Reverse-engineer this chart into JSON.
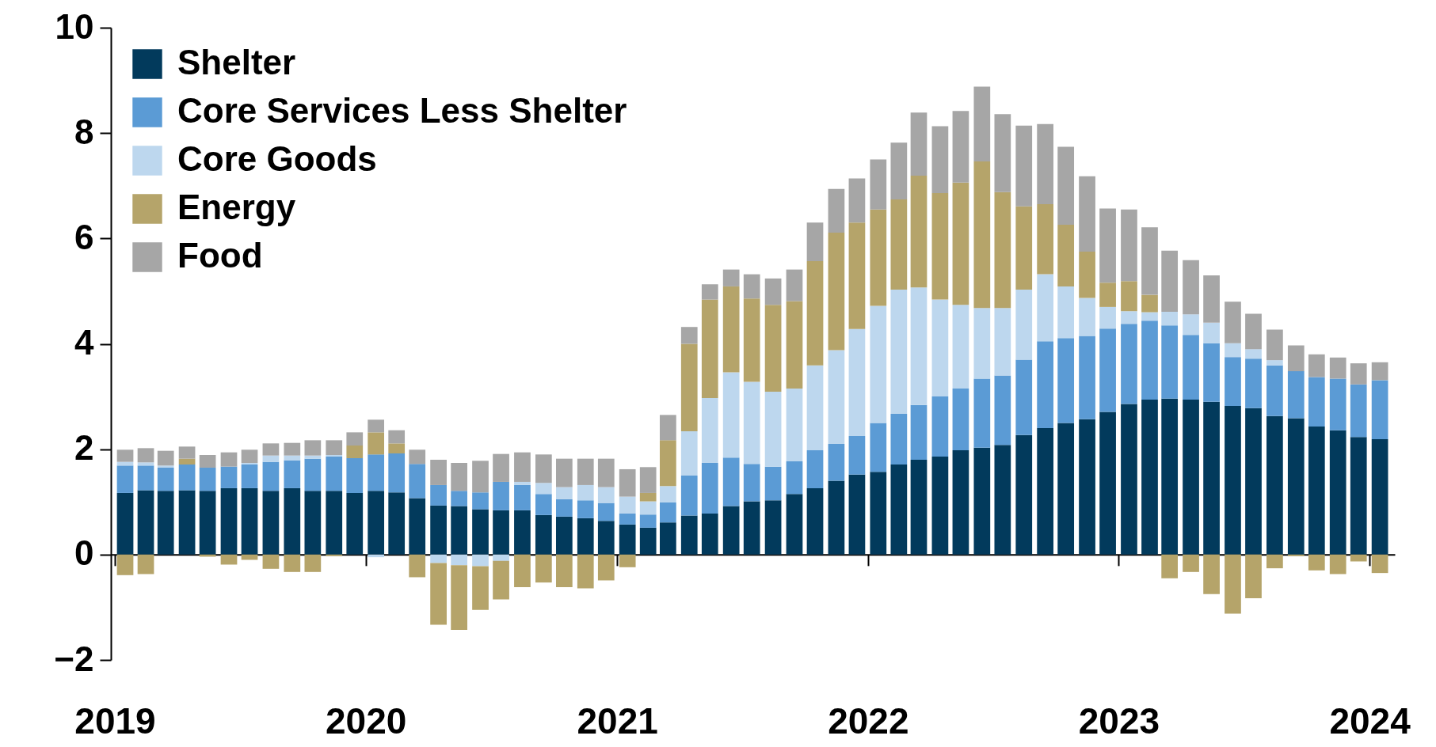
{
  "chart_data": {
    "type": "bar",
    "stacked": true,
    "legend": "top left",
    "x": [
      "2019-01-16",
      "2019-02-15",
      "2019-03-16",
      "2019-04-16",
      "2019-05-16",
      "2019-06-16",
      "2019-07-16",
      "2019-08-16",
      "2019-09-16",
      "2019-10-16",
      "2019-11-16",
      "2019-12-16",
      "2020-01-16",
      "2020-02-15",
      "2020-03-16",
      "2020-04-16",
      "2020-05-16",
      "2020-06-16",
      "2020-07-16",
      "2020-08-16",
      "2020-09-16",
      "2020-10-16",
      "2020-11-16",
      "2020-12-16",
      "2021-01-16",
      "2021-02-15",
      "2021-03-16",
      "2021-04-16",
      "2021-05-16",
      "2021-06-16",
      "2021-07-16",
      "2021-08-16",
      "2021-09-16",
      "2021-10-16",
      "2021-11-16",
      "2021-12-16",
      "2022-01-16",
      "2022-02-15",
      "2022-03-16",
      "2022-04-16",
      "2022-05-16",
      "2022-06-16",
      "2022-07-16",
      "2022-08-16",
      "2022-09-16",
      "2022-10-16",
      "2022-11-16",
      "2022-12-16",
      "2023-01-16",
      "2023-02-15",
      "2023-03-16",
      "2023-04-16",
      "2023-05-16",
      "2023-06-16",
      "2023-07-16",
      "2023-08-16",
      "2023-09-16",
      "2023-10-16",
      "2023-11-16",
      "2023-12-16",
      "2024-01-16"
    ],
    "xlim": [
      "2019-01",
      "2024-02"
    ],
    "xticks": [
      "2019",
      "2020",
      "2021",
      "2022",
      "2023",
      "2024"
    ],
    "ylim": [
      -2,
      10
    ],
    "yticks": [
      -2,
      0,
      2,
      4,
      6,
      8,
      10
    ],
    "series": [
      {
        "name": "Shelter",
        "color": "#023a5c",
        "values": [
          1.17,
          1.22,
          1.21,
          1.22,
          1.21,
          1.26,
          1.26,
          1.21,
          1.26,
          1.21,
          1.21,
          1.17,
          1.21,
          1.18,
          1.07,
          0.93,
          0.92,
          0.86,
          0.84,
          0.84,
          0.75,
          0.72,
          0.69,
          0.64,
          0.57,
          0.51,
          0.61,
          0.74,
          0.78,
          0.92,
          1.01,
          1.03,
          1.15,
          1.26,
          1.4,
          1.52,
          1.57,
          1.71,
          1.8,
          1.86,
          1.98,
          2.03,
          2.08,
          2.27,
          2.4,
          2.5,
          2.57,
          2.71,
          2.86,
          2.94,
          2.96,
          2.94,
          2.9,
          2.82,
          2.78,
          2.63,
          2.59,
          2.43,
          2.36,
          2.23,
          2.19
        ]
      },
      {
        "name": "Core Services Less Shelter",
        "color": "#5b9bd5",
        "values": [
          0.52,
          0.47,
          0.44,
          0.49,
          0.44,
          0.41,
          0.45,
          0.55,
          0.53,
          0.61,
          0.65,
          0.66,
          0.69,
          0.74,
          0.65,
          0.39,
          0.29,
          0.32,
          0.54,
          0.48,
          0.4,
          0.33,
          0.34,
          0.34,
          0.21,
          0.25,
          0.38,
          0.76,
          0.96,
          0.92,
          0.71,
          0.64,
          0.62,
          0.72,
          0.7,
          0.73,
          0.93,
          0.96,
          1.04,
          1.14,
          1.17,
          1.31,
          1.32,
          1.43,
          1.65,
          1.61,
          1.58,
          1.58,
          1.52,
          1.5,
          1.39,
          1.23,
          1.11,
          0.93,
          0.94,
          0.96,
          0.89,
          0.94,
          0.98,
          1.0,
          1.12
        ]
      },
      {
        "name": "Core Goods",
        "color": "#bdd7ee",
        "values": [
          0.07,
          0.06,
          0.04,
          0,
          0,
          0,
          0.03,
          0.12,
          0.09,
          0.06,
          0.03,
          0,
          -0.05,
          0,
          0,
          -0.16,
          -0.2,
          -0.22,
          -0.12,
          0.06,
          0.21,
          0.23,
          0.29,
          0.3,
          0.32,
          0.25,
          0.31,
          0.84,
          1.23,
          1.62,
          1.56,
          1.42,
          1.38,
          1.61,
          1.78,
          2.03,
          2.22,
          2.36,
          2.23,
          1.84,
          1.59,
          1.34,
          1.28,
          1.33,
          1.27,
          0.98,
          0.72,
          0.41,
          0.24,
          0.16,
          0.26,
          0.39,
          0.39,
          0.26,
          0.18,
          0.1,
          0,
          0,
          0,
          0,
          0
        ]
      },
      {
        "name": "Energy",
        "color": "#b5a46a",
        "values": [
          -0.39,
          -0.37,
          0,
          0.11,
          -0.04,
          -0.19,
          -0.1,
          -0.27,
          -0.33,
          -0.33,
          -0.03,
          0.24,
          0.42,
          0.19,
          -0.43,
          -1.17,
          -1.23,
          -0.83,
          -0.73,
          -0.62,
          -0.53,
          -0.62,
          -0.64,
          -0.49,
          -0.24,
          0.16,
          0.87,
          1.66,
          1.87,
          1.63,
          1.58,
          1.65,
          1.66,
          1.98,
          2.23,
          2.02,
          1.83,
          1.71,
          2.12,
          2.02,
          2.32,
          2.78,
          2.2,
          1.58,
          1.33,
          1.17,
          0.88,
          0.46,
          0.57,
          0.33,
          -0.45,
          -0.33,
          -0.75,
          -1.12,
          -0.83,
          -0.26,
          -0.03,
          -0.3,
          -0.37,
          -0.13,
          -0.35
        ]
      },
      {
        "name": "Food",
        "color": "#a6a6a6",
        "values": [
          0.23,
          0.27,
          0.28,
          0.23,
          0.24,
          0.27,
          0.25,
          0.23,
          0.24,
          0.29,
          0.28,
          0.25,
          0.24,
          0.25,
          0.27,
          0.48,
          0.53,
          0.6,
          0.53,
          0.56,
          0.54,
          0.54,
          0.5,
          0.54,
          0.52,
          0.49,
          0.48,
          0.32,
          0.29,
          0.32,
          0.46,
          0.5,
          0.6,
          0.73,
          0.83,
          0.84,
          0.95,
          1.08,
          1.2,
          1.27,
          1.36,
          1.42,
          1.48,
          1.53,
          1.52,
          1.48,
          1.43,
          1.41,
          1.36,
          1.28,
          1.16,
          1.03,
          0.9,
          0.79,
          0.67,
          0.58,
          0.49,
          0.43,
          0.4,
          0.4,
          0.34
        ]
      }
    ]
  }
}
